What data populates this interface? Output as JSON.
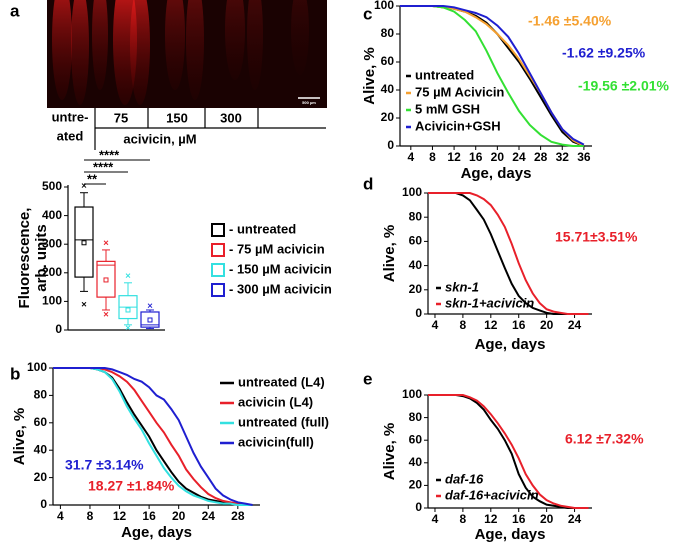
{
  "panel_a_image": {
    "panel": "a",
    "scale_bar": "500 µm",
    "column_labels": [
      [
        "untre-",
        "ated"
      ],
      "75",
      "150",
      "300"
    ],
    "axis_caption": "acivicin, µM"
  },
  "chart_data": [
    {
      "type": "box",
      "ylabel": [
        "Fluorescence,",
        "arb. units"
      ],
      "ylim": [
        0,
        500
      ],
      "yticks": [
        0,
        100,
        200,
        300,
        400,
        500
      ],
      "significance": [
        "**",
        "****",
        "****"
      ],
      "series": [
        {
          "name": "- untreated",
          "color": "#000000",
          "whisker_low": 135,
          "q1": 185,
          "median": 315,
          "q3": 430,
          "whisker_high": 480,
          "mean": 305,
          "outliers": [
            505,
            90
          ]
        },
        {
          "name": "- 75 µM acivicin",
          "color": "#e8202a",
          "whisker_low": 70,
          "q1": 115,
          "median": 227,
          "q3": 240,
          "whisker_high": 280,
          "mean": 175,
          "outliers": [
            305,
            55
          ]
        },
        {
          "name": "- 150 µM acivicin",
          "color": "#33e0e0",
          "whisker_low": 18,
          "q1": 40,
          "median": 80,
          "q3": 120,
          "whisker_high": 165,
          "mean": 70,
          "outliers": [
            190,
            8
          ]
        },
        {
          "name": "- 300 µM acivicin",
          "color": "#1f1fd0",
          "whisker_low": 5,
          "q1": 10,
          "median": 18,
          "q3": 63,
          "whisker_high": 70,
          "mean": 35,
          "outliers": [
            85
          ]
        }
      ]
    },
    {
      "type": "line",
      "panel": "b",
      "xlabel": "Age, days",
      "ylabel": "Alive, %",
      "xlim": [
        3,
        31
      ],
      "ylim": [
        0,
        100
      ],
      "xticks": [
        4,
        8,
        12,
        16,
        20,
        24,
        28
      ],
      "yticks": [
        0,
        20,
        40,
        60,
        80,
        100
      ],
      "x": [
        3,
        4,
        5,
        6,
        7,
        8,
        9,
        10,
        11,
        12,
        13,
        14,
        15,
        16,
        17,
        18,
        19,
        20,
        21,
        22,
        23,
        24,
        25,
        26,
        27,
        28,
        29,
        30
      ],
      "series": [
        {
          "name": "untreated (L4)",
          "color": "#000000",
          "values": [
            100,
            100,
            100,
            100,
            100,
            100,
            99,
            97,
            93,
            85,
            75,
            66,
            58,
            50,
            40,
            32,
            24,
            17,
            12,
            9,
            6,
            4,
            3,
            2,
            1,
            1,
            0,
            0
          ]
        },
        {
          "name": "acivicin (L4)",
          "color": "#e8202a",
          "values": [
            100,
            100,
            100,
            100,
            100,
            100,
            100,
            99,
            97,
            94,
            90,
            84,
            76,
            68,
            60,
            53,
            44,
            36,
            26,
            19,
            13,
            8,
            5,
            3,
            2,
            1,
            0,
            0
          ]
        },
        {
          "name": "untreated (full)",
          "color": "#33e0e0",
          "values": [
            100,
            100,
            100,
            100,
            100,
            100,
            99,
            97,
            92,
            83,
            72,
            63,
            55,
            45,
            36,
            27,
            20,
            14,
            10,
            7,
            5,
            3,
            2,
            1,
            1,
            0,
            0,
            0
          ]
        },
        {
          "name": "acivicin(full)",
          "color": "#1f1fd0",
          "values": [
            100,
            100,
            100,
            100,
            100,
            100,
            100,
            100,
            99,
            97,
            95,
            92,
            90,
            86,
            80,
            77,
            70,
            62,
            50,
            38,
            28,
            20,
            12,
            7,
            4,
            2,
            1,
            0
          ]
        }
      ],
      "annotations": [
        {
          "text": "31.7 ±3.14%",
          "color": "#1f1fd0"
        },
        {
          "text": "18.27 ±1.84%",
          "color": "#e8202a"
        }
      ]
    },
    {
      "type": "line",
      "panel": "c",
      "xlabel": "Age, days",
      "ylabel": "Alive, %",
      "xlim": [
        2,
        37.5
      ],
      "ylim": [
        0,
        100
      ],
      "xticks": [
        4,
        8,
        12,
        16,
        20,
        24,
        28,
        32,
        36
      ],
      "yticks": [
        0,
        20,
        40,
        60,
        80,
        100
      ],
      "x": [
        2,
        4,
        6,
        8,
        10,
        12,
        14,
        16,
        18,
        20,
        22,
        24,
        26,
        28,
        30,
        32,
        34,
        36
      ],
      "series": [
        {
          "name": "untreated",
          "color": "#000000",
          "values": [
            100,
            100,
            100,
            100,
            99,
            98,
            96,
            93,
            88,
            80,
            70,
            60,
            48,
            35,
            22,
            10,
            3,
            0
          ]
        },
        {
          "name": "75 µM Acivicin",
          "color": "#f5a030",
          "values": [
            100,
            100,
            100,
            100,
            99,
            98,
            96,
            92,
            87,
            80,
            72,
            62,
            50,
            38,
            24,
            12,
            4,
            0
          ]
        },
        {
          "name": "5 mM GSH",
          "color": "#33e033",
          "values": [
            100,
            100,
            100,
            100,
            99,
            96,
            90,
            82,
            68,
            52,
            38,
            25,
            15,
            8,
            3,
            1,
            0,
            0
          ]
        },
        {
          "name": "Acivicin+GSH",
          "color": "#1f1fd0",
          "values": [
            100,
            100,
            100,
            100,
            100,
            99,
            97,
            95,
            92,
            86,
            78,
            66,
            52,
            38,
            24,
            12,
            5,
            1
          ]
        }
      ],
      "annotations": [
        {
          "text": "-1.46 ±5.40%",
          "color": "#f5a030"
        },
        {
          "text": "-1.62 ±9.25%",
          "color": "#1f1fd0"
        },
        {
          "text": "-19.56 ±2.01%",
          "color": "#33e033"
        }
      ]
    },
    {
      "type": "line",
      "panel": "d",
      "xlabel": "Age, days",
      "ylabel": "Alive, %",
      "xlim": [
        3,
        26.5
      ],
      "ylim": [
        0,
        100
      ],
      "xticks": [
        4,
        8,
        12,
        16,
        20,
        24
      ],
      "yticks": [
        0,
        20,
        40,
        60,
        80,
        100
      ],
      "x": [
        3,
        4,
        5,
        6,
        7,
        8,
        9,
        10,
        11,
        12,
        13,
        14,
        15,
        16,
        17,
        18,
        19,
        20,
        21,
        22,
        23,
        24,
        25,
        26
      ],
      "series": [
        {
          "name": "skn-1",
          "color": "#000000",
          "values": [
            100,
            100,
            100,
            100,
            100,
            98,
            94,
            86,
            78,
            66,
            52,
            38,
            25,
            15,
            9,
            5,
            3,
            1,
            0,
            0,
            0,
            0,
            0,
            0
          ]
        },
        {
          "name": "skn-1+acivicin",
          "color": "#e8202a",
          "values": [
            100,
            100,
            100,
            100,
            100,
            100,
            100,
            98,
            95,
            90,
            82,
            72,
            58,
            42,
            28,
            17,
            9,
            4,
            2,
            1,
            0,
            0,
            0,
            0
          ]
        }
      ],
      "annotations": [
        {
          "text": "15.71±3.51%",
          "color": "#e8202a"
        }
      ]
    },
    {
      "type": "line",
      "panel": "e",
      "xlabel": "Age, days",
      "ylabel": "Alive, %",
      "xlim": [
        3,
        26.5
      ],
      "ylim": [
        0,
        100
      ],
      "xticks": [
        4,
        8,
        12,
        16,
        20,
        24
      ],
      "yticks": [
        0,
        20,
        40,
        60,
        80,
        100
      ],
      "x": [
        3,
        4,
        5,
        6,
        7,
        8,
        9,
        10,
        11,
        12,
        13,
        14,
        15,
        16,
        17,
        18,
        19,
        20,
        21,
        22,
        23,
        24,
        25,
        26
      ],
      "series": [
        {
          "name": "daf-16",
          "color": "#000000",
          "values": [
            100,
            100,
            100,
            100,
            100,
            99,
            97,
            93,
            87,
            78,
            70,
            60,
            48,
            30,
            18,
            10,
            6,
            3,
            2,
            1,
            0,
            0,
            0,
            0
          ]
        },
        {
          "name": "daf-16+acivicin",
          "color": "#e8202a",
          "values": [
            100,
            100,
            100,
            100,
            100,
            100,
            98,
            95,
            90,
            83,
            75,
            66,
            56,
            44,
            30,
            20,
            12,
            7,
            4,
            2,
            1,
            0,
            0,
            0
          ]
        }
      ],
      "annotations": [
        {
          "text": "6.12 ±7.32%",
          "color": "#e8202a"
        }
      ]
    }
  ]
}
